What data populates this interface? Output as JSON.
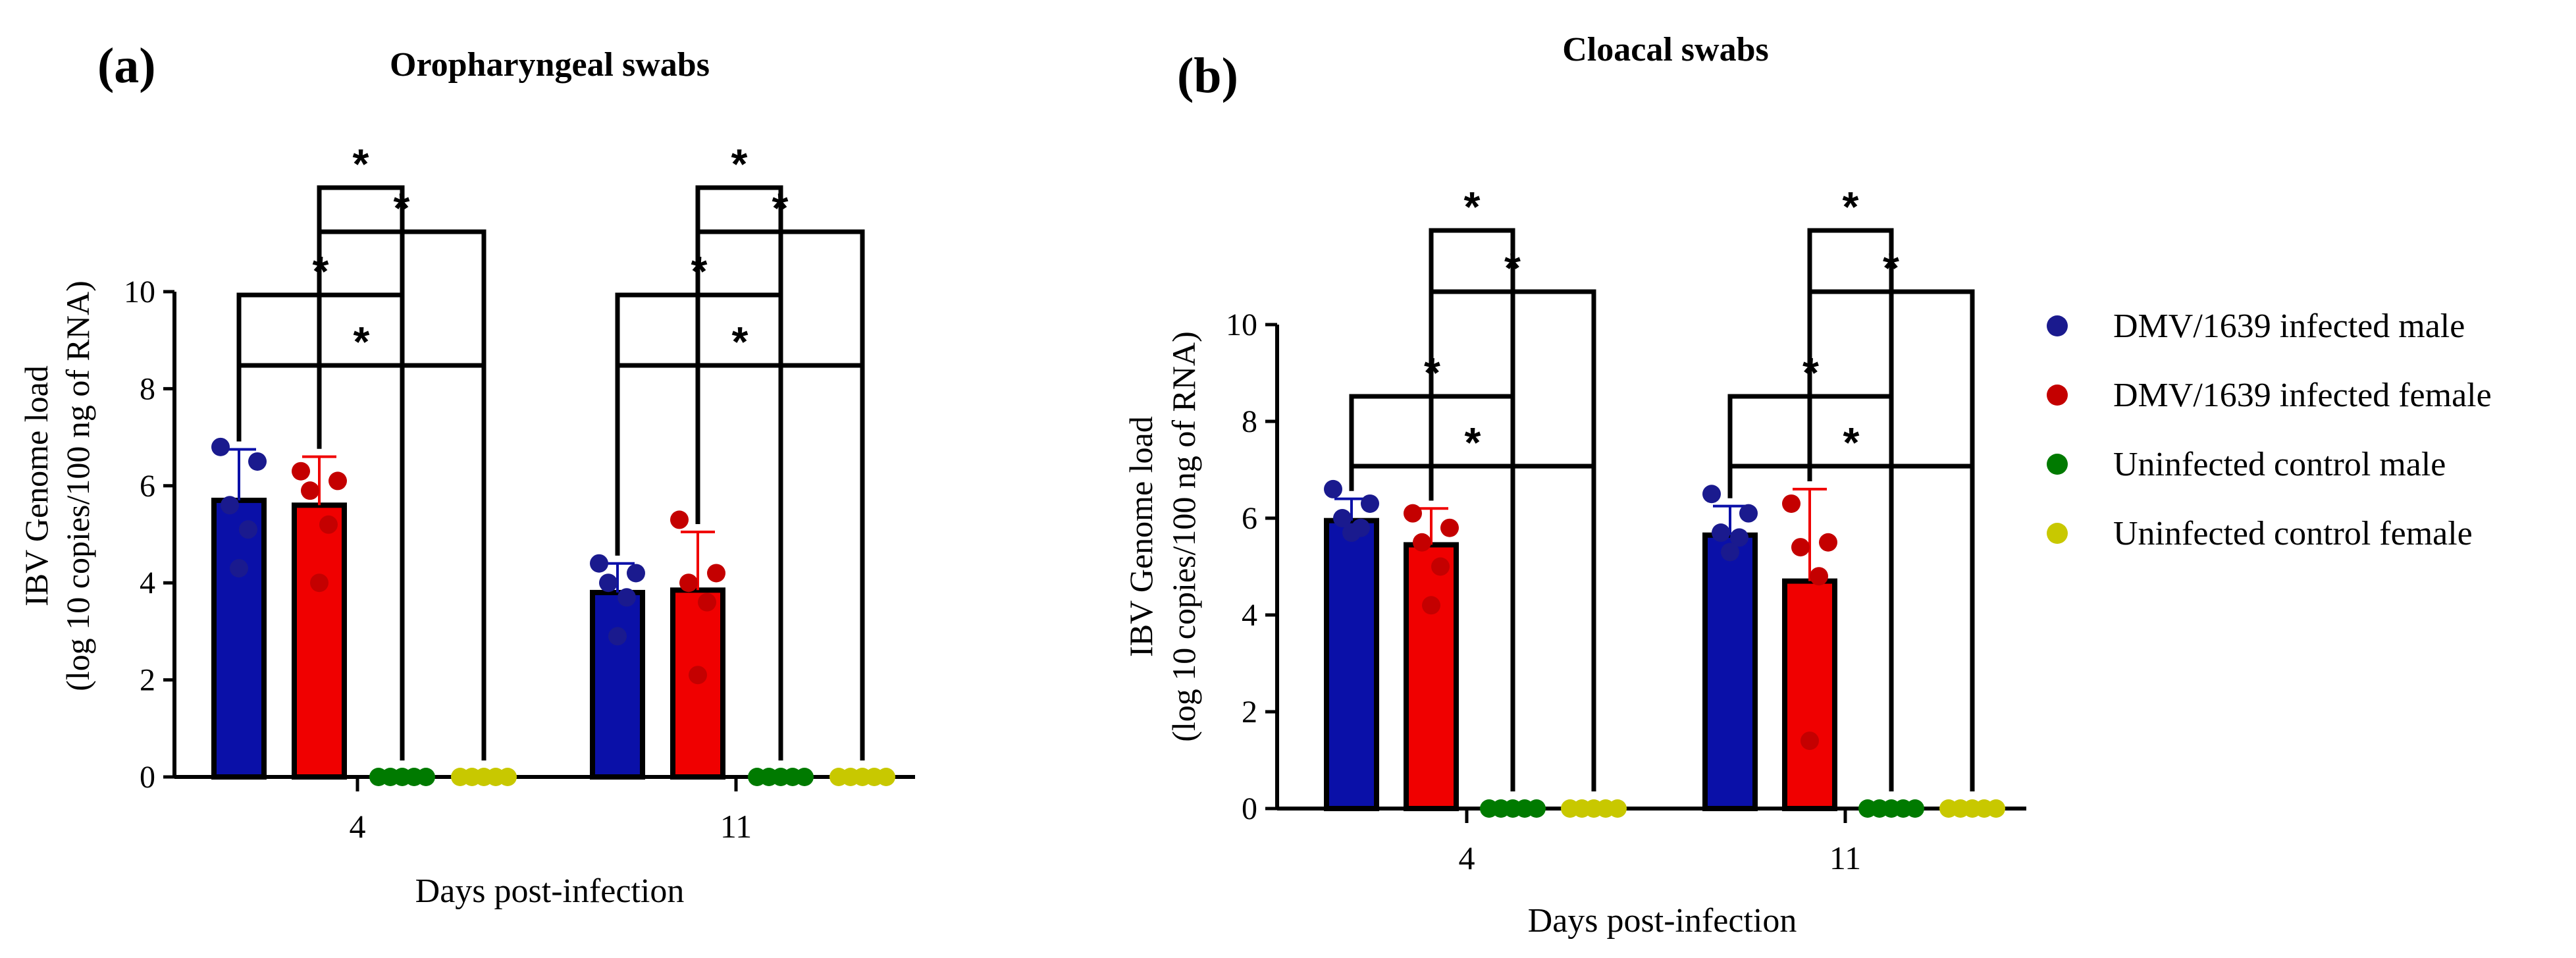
{
  "colors": {
    "male_infected": "#0a10a8",
    "female_infected": "#f00000",
    "male_control": "#007a00",
    "female_control": "#c8c800",
    "dot_male_infected": "#1a1a8e",
    "dot_female_infected": "#c40000",
    "axis": "#000000"
  },
  "legend": {
    "items": [
      {
        "label": "DMV/1639 infected male",
        "color": "#1a1a8e"
      },
      {
        "label": "DMV/1639 infected female",
        "color": "#c40000"
      },
      {
        "label": "Uninfected control male",
        "color": "#007a00"
      },
      {
        "label": "Uninfected control female",
        "color": "#c8c800"
      }
    ]
  },
  "chart_data": [
    {
      "type": "bar",
      "panel_label": "(a)",
      "title": "Oropharyngeal swabs",
      "xlabel": "Days post-infection",
      "ylabel_line1": "IBV Genome load",
      "ylabel_line2": "(log 10 copies/100 ng of RNA)",
      "ylim": [
        0,
        10
      ],
      "yticks": [
        "0",
        "2",
        "4",
        "6",
        "8",
        "10"
      ],
      "categories": [
        "4",
        "11"
      ],
      "significance_symbol": "*",
      "series": [
        {
          "name": "DMV/1639 infected male",
          "values": [
            5.7,
            3.8
          ],
          "errors": [
            1.05,
            0.6
          ],
          "points": [
            [
              6.8,
              6.5,
              5.6,
              5.1,
              4.3
            ],
            [
              4.4,
              4.2,
              4.0,
              3.7,
              2.9
            ]
          ]
        },
        {
          "name": "DMV/1639 infected female",
          "values": [
            5.6,
            3.85
          ],
          "errors": [
            1.0,
            1.2
          ],
          "points": [
            [
              6.3,
              6.1,
              5.9,
              5.2,
              4.0
            ],
            [
              5.3,
              4.2,
              4.0,
              3.6,
              2.1
            ]
          ]
        },
        {
          "name": "Uninfected control male",
          "values": [
            0,
            0
          ],
          "errors": [
            0,
            0
          ],
          "points": [
            [
              0,
              0,
              0,
              0,
              0
            ],
            [
              0,
              0,
              0,
              0,
              0
            ]
          ]
        },
        {
          "name": "Uninfected control female",
          "values": [
            0,
            0
          ],
          "errors": [
            0,
            0
          ],
          "points": [
            [
              0,
              0,
              0,
              0,
              0
            ],
            [
              0,
              0,
              0,
              0,
              0
            ]
          ]
        }
      ],
      "comparisons": [
        {
          "group": 0,
          "from": 0,
          "to": 3,
          "level": 3
        },
        {
          "group": 0,
          "from": 0,
          "to": 2,
          "level": 2
        },
        {
          "group": 0,
          "from": 1,
          "to": 3,
          "level": 1
        },
        {
          "group": 0,
          "from": 1,
          "to": 2,
          "level": 0
        },
        {
          "group": 1,
          "from": 0,
          "to": 3,
          "level": 3
        },
        {
          "group": 1,
          "from": 0,
          "to": 2,
          "level": 2
        },
        {
          "group": 1,
          "from": 1,
          "to": 3,
          "level": 1
        },
        {
          "group": 1,
          "from": 1,
          "to": 2,
          "level": 0
        }
      ]
    },
    {
      "type": "bar",
      "panel_label": "(b)",
      "title": "Cloacal swabs",
      "xlabel": "Days post-infection",
      "ylabel_line1": "IBV Genome load",
      "ylabel_line2": "(log 10 copies/100 ng of RNA)",
      "ylim": [
        0,
        10
      ],
      "yticks": [
        "0",
        "2",
        "4",
        "6",
        "8",
        "10"
      ],
      "categories": [
        "4",
        "11"
      ],
      "significance_symbol": "*",
      "series": [
        {
          "name": "DMV/1639 infected male",
          "values": [
            5.95,
            5.65
          ],
          "errors": [
            0.45,
            0.6
          ],
          "points": [
            [
              6.6,
              6.3,
              6.0,
              5.8,
              5.7
            ],
            [
              6.5,
              6.1,
              5.7,
              5.6,
              5.3
            ]
          ]
        },
        {
          "name": "DMV/1639 infected female",
          "values": [
            5.45,
            4.7
          ],
          "errors": [
            0.75,
            1.9
          ],
          "points": [
            [
              6.1,
              5.8,
              5.5,
              5.0,
              4.2
            ],
            [
              6.3,
              5.5,
              5.4,
              4.8,
              1.4
            ]
          ]
        },
        {
          "name": "Uninfected control male",
          "values": [
            0,
            0
          ],
          "errors": [
            0,
            0
          ],
          "points": [
            [
              0,
              0,
              0,
              0,
              0
            ],
            [
              0,
              0,
              0,
              0,
              0
            ]
          ]
        },
        {
          "name": "Uninfected control female",
          "values": [
            0,
            0
          ],
          "errors": [
            0,
            0
          ],
          "points": [
            [
              0,
              0,
              0,
              0,
              0
            ],
            [
              0,
              0,
              0,
              0,
              0
            ]
          ]
        }
      ],
      "comparisons": [
        {
          "group": 0,
          "from": 0,
          "to": 3,
          "level": 3
        },
        {
          "group": 0,
          "from": 0,
          "to": 2,
          "level": 2
        },
        {
          "group": 0,
          "from": 1,
          "to": 3,
          "level": 1
        },
        {
          "group": 0,
          "from": 1,
          "to": 2,
          "level": 0
        },
        {
          "group": 1,
          "from": 0,
          "to": 3,
          "level": 3
        },
        {
          "group": 1,
          "from": 0,
          "to": 2,
          "level": 2
        },
        {
          "group": 1,
          "from": 1,
          "to": 3,
          "level": 1
        },
        {
          "group": 1,
          "from": 1,
          "to": 2,
          "level": 0
        }
      ]
    }
  ]
}
